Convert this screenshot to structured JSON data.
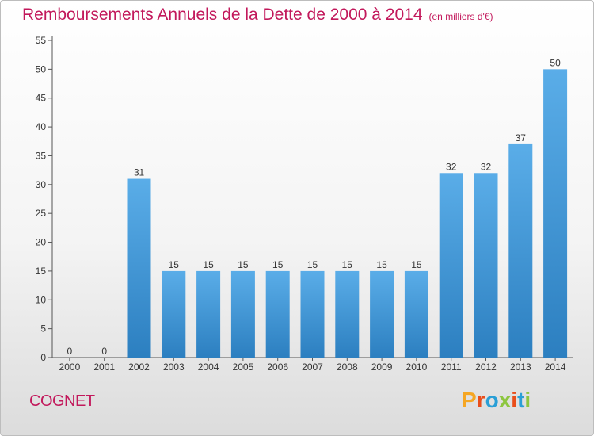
{
  "header": {
    "title": "Remboursements Annuels de la Dette de 2000 à 2014",
    "subtitle": "(en milliers d'€)"
  },
  "footer": {
    "commune": "COGNET",
    "logo_text": "Proxiti",
    "logo_colors": [
      "#f5a623",
      "#e94e1b",
      "#2a9fd6",
      "#8dc63f",
      "#e94e1b",
      "#2a9fd6",
      "#8dc63f"
    ]
  },
  "chart_data": {
    "type": "bar",
    "title": "Remboursements Annuels de la Dette de 2000 à 2014",
    "subtitle": "(en milliers d'€)",
    "xlabel": "",
    "ylabel": "",
    "categories": [
      "2000",
      "2001",
      "2002",
      "2003",
      "2004",
      "2005",
      "2006",
      "2007",
      "2008",
      "2009",
      "2010",
      "2011",
      "2012",
      "2013",
      "2014"
    ],
    "values": [
      0,
      0,
      31,
      15,
      15,
      15,
      15,
      15,
      15,
      15,
      15,
      32,
      32,
      37,
      50
    ],
    "ylim": [
      0,
      55
    ],
    "yticks": [
      0,
      5,
      10,
      15,
      20,
      25,
      30,
      35,
      40,
      45,
      50,
      55
    ],
    "grid": false,
    "bar_color_top": "#5aade8",
    "bar_color_bottom": "#2c7fc0"
  }
}
